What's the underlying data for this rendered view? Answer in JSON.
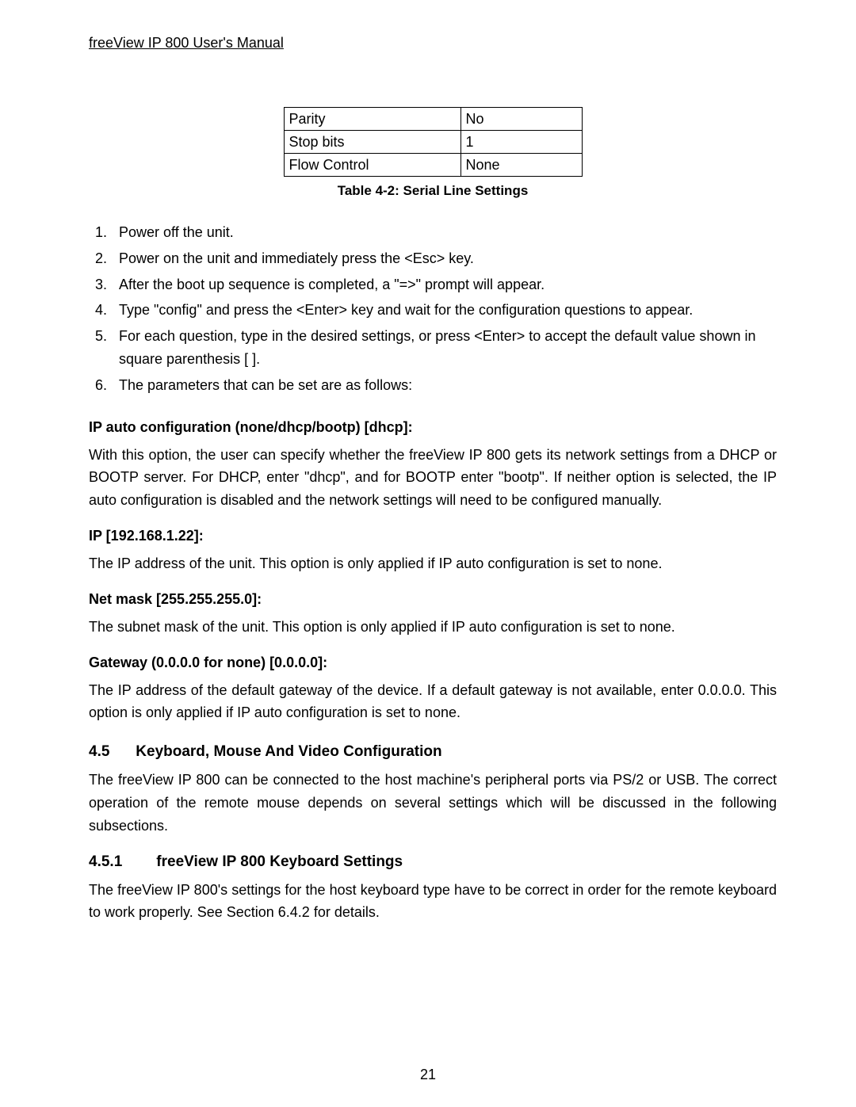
{
  "header": "freeView IP 800 User's Manual",
  "table": {
    "rows": [
      {
        "label": "Parity",
        "value": "No"
      },
      {
        "label": "Stop bits",
        "value": "1"
      },
      {
        "label": "Flow Control",
        "value": "None"
      }
    ],
    "caption": "Table 4-2: Serial Line Settings",
    "border_color": "#000000",
    "cell_fontsize": 18
  },
  "steps": [
    "Power off the unit.",
    "Power on the unit and immediately press the <Esc> key.",
    "After the boot up sequence is completed, a \"=>\" prompt will appear.",
    "Type \"config\" and press the <Enter> key and wait for the configuration questions to appear.",
    "For each question, type in the desired settings, or press <Enter> to accept the default value shown in square parenthesis [ ].",
    "The parameters that can be set are as follows:"
  ],
  "sections": {
    "ip_auto": {
      "label": "IP auto configuration (none/dhcp/bootp) [dhcp]:",
      "text": "With this option, the user can specify whether the freeView IP 800 gets its network settings from a DHCP or BOOTP server. For DHCP, enter \"dhcp\", and for BOOTP enter \"bootp\". If neither option is selected, the IP auto configuration is disabled and the network settings will need to be configured manually."
    },
    "ip": {
      "label": "IP [192.168.1.22]:",
      "text": "The IP address of the unit. This option is only applied if IP auto configuration is set to none."
    },
    "netmask": {
      "label": "Net mask [255.255.255.0]:",
      "text": "The subnet mask of the unit. This option is only applied if IP auto configuration is set to none."
    },
    "gateway": {
      "label": "Gateway (0.0.0.0 for none) [0.0.0.0]:",
      "text": "The IP address of the default gateway of the device. If a default gateway is not available, enter 0.0.0.0. This option is only applied if IP auto configuration is set to none."
    }
  },
  "sec45": {
    "num": "4.5",
    "title": "Keyboard, Mouse And Video Configuration",
    "text": "The freeView IP 800 can be connected to the host machine's peripheral ports via PS/2 or USB. The correct operation of the remote mouse depends on several settings which will be discussed in the following subsections."
  },
  "sec451": {
    "num": "4.5.1",
    "title": "freeView IP 800 Keyboard Settings",
    "text": "The freeView IP 800's settings for the host keyboard type have to be correct in order for the remote keyboard to work properly. See Section 6.4.2 for details."
  },
  "page_number": "21",
  "colors": {
    "text": "#000000",
    "background": "#ffffff"
  },
  "typography": {
    "body_fontsize": 18,
    "caption_fontsize": 17,
    "heading_fontsize": 19,
    "line_height": 1.6
  }
}
